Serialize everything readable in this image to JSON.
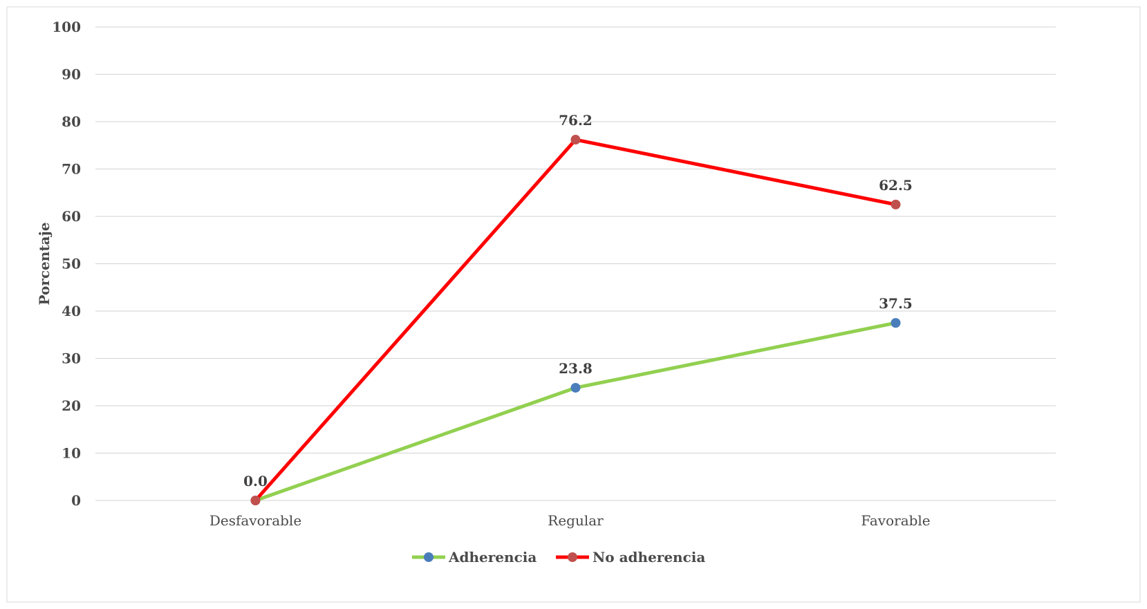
{
  "chart_data": {
    "type": "line",
    "title": "",
    "xlabel": "",
    "ylabel": "Porcentaje",
    "categories": [
      "Desfavorable",
      "Regular",
      "Favorable"
    ],
    "ylim": [
      0,
      100
    ],
    "yticks": [
      0,
      10,
      20,
      30,
      40,
      50,
      60,
      70,
      80,
      90,
      100
    ],
    "grid": true,
    "legend_position": "bottom",
    "series": [
      {
        "name": "Adherencia",
        "values": [
          0.0,
          23.8,
          37.5
        ],
        "labels": [
          "",
          "23.8",
          "37.5"
        ],
        "line_color": "#92d050",
        "marker_color": "#4a7ebb"
      },
      {
        "name": "No adherencia",
        "values": [
          0.0,
          76.2,
          62.5
        ],
        "labels": [
          "0.0",
          "76.2",
          "62.5"
        ],
        "line_color": "#ff0000",
        "marker_color": "#c0504d"
      }
    ]
  }
}
